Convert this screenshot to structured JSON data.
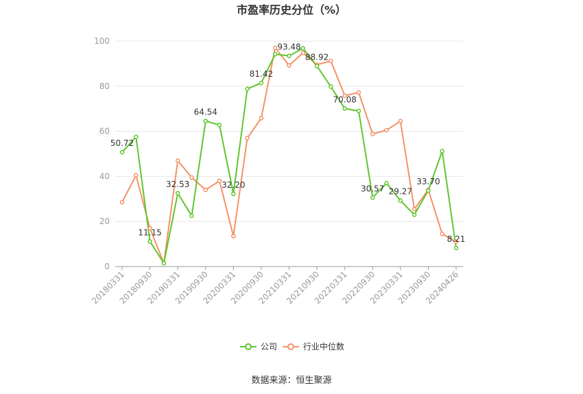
{
  "chart_data": {
    "type": "line",
    "title": "市盈率历史分位（%）",
    "source": "数据来源：恒生聚源",
    "ylim": [
      0,
      100
    ],
    "yticks": [
      0,
      20,
      40,
      60,
      80,
      100
    ],
    "grid": true,
    "legend_position": "bottom",
    "colors": {
      "company": "#5fc52e",
      "industry": "#f59166"
    },
    "x": [
      "20180331",
      "20180630",
      "20180930",
      "20181231",
      "20190331",
      "20190630",
      "20190930",
      "20191231",
      "20200331",
      "20200630",
      "20200930",
      "20201231",
      "20210331",
      "20210630",
      "20210930",
      "20211231",
      "20220331",
      "20220630",
      "20220930",
      "20221231",
      "20230331",
      "20230630",
      "20230930",
      "20231231",
      "20240426"
    ],
    "xtick_labels": [
      "20180331",
      "20180930",
      "20190331",
      "20190930",
      "20200331",
      "20200930",
      "20210331",
      "20210930",
      "20220331",
      "20220930",
      "20230331",
      "20230930",
      "20240426"
    ],
    "xtick_indices": [
      0,
      2,
      4,
      6,
      8,
      10,
      12,
      14,
      16,
      18,
      20,
      22,
      24
    ],
    "series": [
      {
        "name": "公司",
        "values": [
          50.72,
          57.5,
          11.15,
          1.5,
          32.53,
          22.5,
          64.54,
          62.8,
          32.2,
          78.8,
          81.42,
          94.2,
          93.48,
          96.8,
          88.92,
          79.8,
          70.08,
          69.0,
          30.57,
          37.0,
          29.27,
          23.0,
          33.7,
          51.2,
          8.21
        ]
      },
      {
        "name": "行业中位数",
        "values": [
          28.5,
          40.5,
          17.0,
          1.5,
          47.0,
          39.5,
          34.0,
          38.0,
          13.5,
          57.0,
          65.8,
          97.0,
          89.2,
          94.8,
          89.5,
          91.2,
          75.8,
          77.2,
          58.8,
          60.5,
          64.5,
          25.5,
          34.0,
          14.5,
          11.0
        ]
      }
    ],
    "data_labels": [
      {
        "series": 0,
        "index": 0,
        "text": "50.72"
      },
      {
        "series": 0,
        "index": 2,
        "text": "11.15"
      },
      {
        "series": 0,
        "index": 4,
        "text": "32.53"
      },
      {
        "series": 0,
        "index": 6,
        "text": "64.54"
      },
      {
        "series": 0,
        "index": 8,
        "text": "32.20"
      },
      {
        "series": 0,
        "index": 10,
        "text": "81.42"
      },
      {
        "series": 0,
        "index": 12,
        "text": "93.48"
      },
      {
        "series": 0,
        "index": 14,
        "text": "88.92"
      },
      {
        "series": 0,
        "index": 16,
        "text": "70.08"
      },
      {
        "series": 0,
        "index": 18,
        "text": "30.57"
      },
      {
        "series": 0,
        "index": 20,
        "text": "29.27"
      },
      {
        "series": 0,
        "index": 22,
        "text": "33.70"
      },
      {
        "series": 0,
        "index": 24,
        "text": "8.21"
      }
    ]
  }
}
